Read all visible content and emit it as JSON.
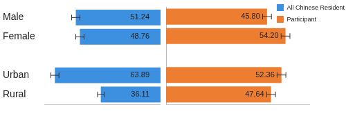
{
  "chart_data": {
    "type": "bar",
    "orientation": "horizontal",
    "categories": [
      "Male",
      "Female",
      null,
      "Urban",
      "Rural"
    ],
    "series": [
      {
        "name": "All Chinese Resident",
        "color": "#3d8fe0",
        "values": [
          51.24,
          48.76,
          null,
          63.89,
          36.11
        ],
        "value_labels": [
          "51.24",
          "48.76",
          null,
          "63.89",
          "36.11"
        ],
        "errors": [
          2.5,
          2.5,
          null,
          2.5,
          2
        ]
      },
      {
        "name": "Participant",
        "color": "#ed7d31",
        "axis": "x2",
        "values": [
          45.8,
          54.2,
          null,
          52.36,
          47.64
        ],
        "value_labels": [
          "45.80",
          "54.20",
          null,
          "52.36",
          "47.64"
        ],
        "errors": [
          2,
          2,
          null,
          2,
          2
        ]
      }
    ],
    "xlim": [
      0,
      70
    ],
    "x2lim": [
      0,
      65
    ],
    "grid": false,
    "tick_labels": "y",
    "legend": "upper right",
    "data_labels": true
  }
}
